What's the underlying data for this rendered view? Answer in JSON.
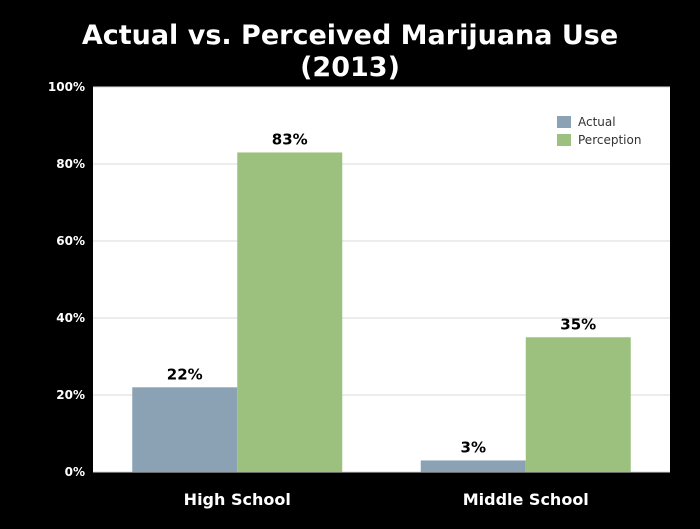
{
  "chart_data": {
    "type": "bar",
    "title_line1": "Actual vs. Perceived Marijuana Use",
    "title_line2": "(2013)",
    "categories": [
      "High School",
      "Middle School"
    ],
    "series": [
      {
        "name": "Actual",
        "values": [
          22,
          3
        ],
        "labels": [
          "22%",
          "3%"
        ],
        "color": "#8aa2b4"
      },
      {
        "name": "Perception",
        "values": [
          83,
          35
        ],
        "labels": [
          "83%",
          "35%"
        ],
        "color": "#9cc17f"
      }
    ],
    "ylim": [
      0,
      100
    ],
    "yticks": [
      0,
      20,
      40,
      60,
      80,
      100
    ],
    "ytick_labels": [
      "0%",
      "20%",
      "40%",
      "60%",
      "80%",
      "100%"
    ],
    "grid": true,
    "legend_position": "top-right",
    "plot_background": "#ffffff",
    "page_background": "#000000"
  }
}
